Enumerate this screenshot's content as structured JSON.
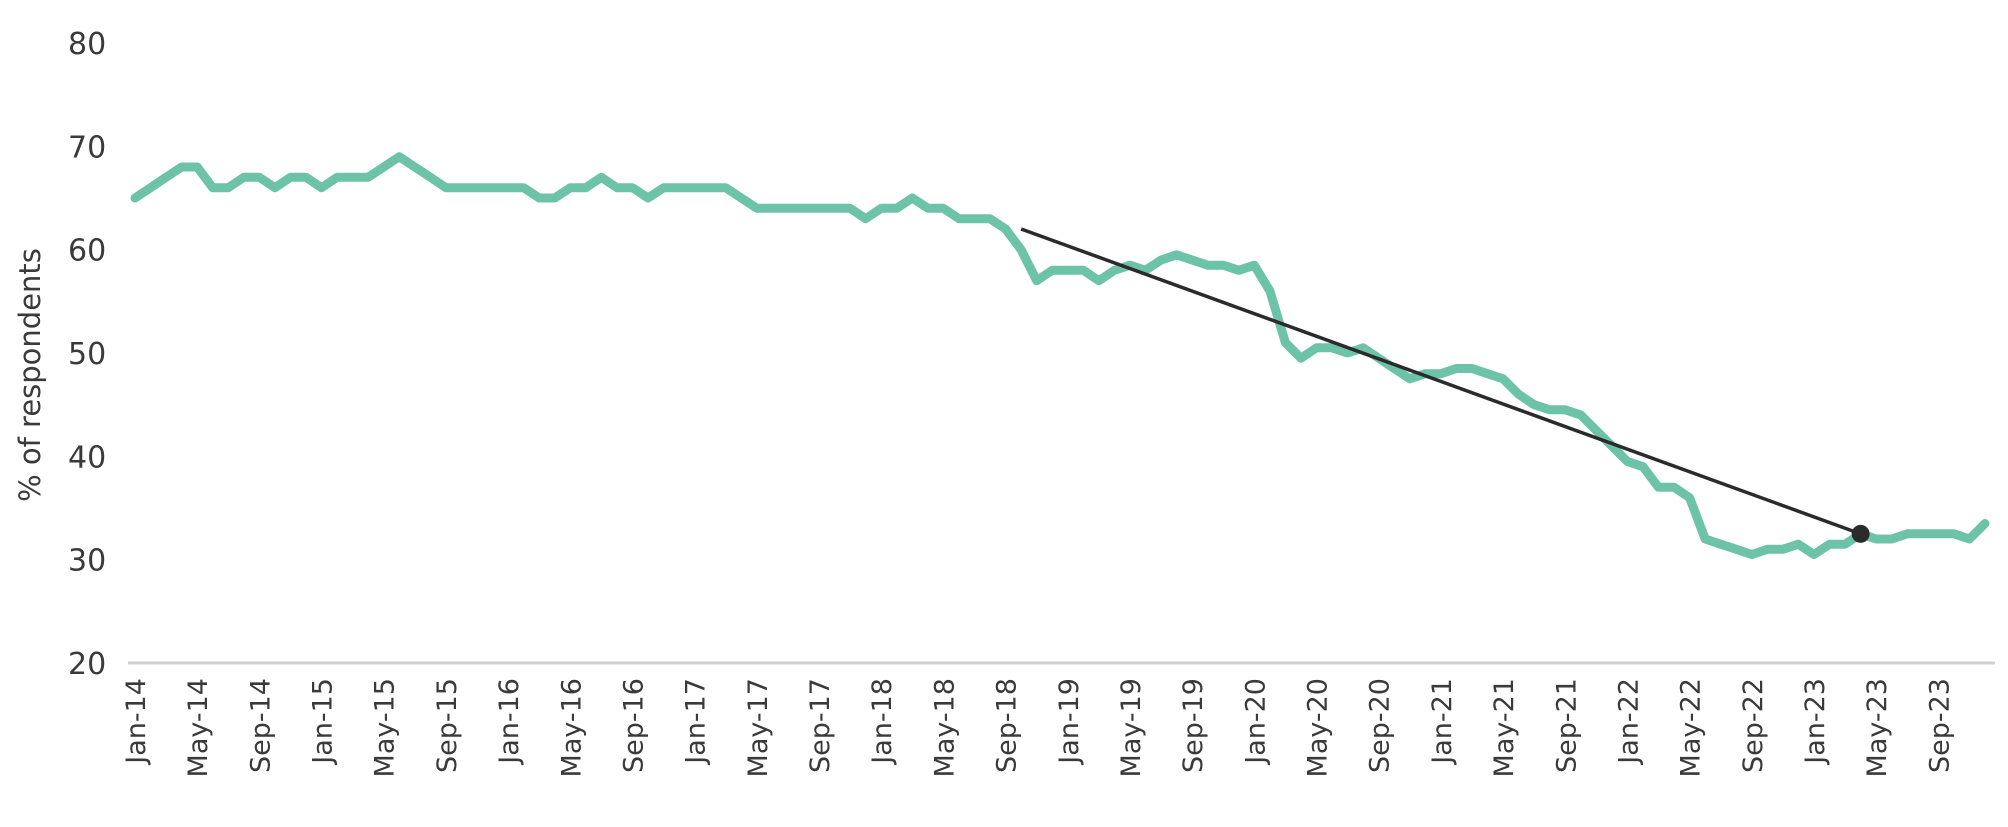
{
  "chart_data": {
    "type": "line",
    "ylabel": "% of respondents",
    "ylim": [
      20,
      80
    ],
    "yticks": [
      20,
      30,
      40,
      50,
      60,
      70,
      80
    ],
    "xlim": [
      "2014-01",
      "2023-12"
    ],
    "xtick_labels": [
      "Jan-14",
      "May-14",
      "Sep-14",
      "Jan-15",
      "May-15",
      "Sep-15",
      "Jan-16",
      "May-16",
      "Sep-16",
      "Jan-17",
      "May-17",
      "Sep-17",
      "Jan-18",
      "May-18",
      "Sep-18",
      "Jan-19",
      "May-19",
      "Sep-19",
      "Jan-20",
      "May-20",
      "Sep-20",
      "Jan-21",
      "May-21",
      "Sep-21",
      "Jan-22",
      "May-22",
      "Sep-22",
      "Jan-23",
      "May-23",
      "Sep-23"
    ],
    "grid": false,
    "series": [
      {
        "color": "#6cc3a8",
        "points": [
          [
            "2014-01",
            65
          ],
          [
            "2014-02",
            66
          ],
          [
            "2014-03",
            67
          ],
          [
            "2014-04",
            68
          ],
          [
            "2014-05",
            68
          ],
          [
            "2014-06",
            66
          ],
          [
            "2014-07",
            66
          ],
          [
            "2014-08",
            67
          ],
          [
            "2014-09",
            67
          ],
          [
            "2014-10",
            66
          ],
          [
            "2014-11",
            67
          ],
          [
            "2014-12",
            67
          ],
          [
            "2015-01",
            66
          ],
          [
            "2015-02",
            67
          ],
          [
            "2015-03",
            67
          ],
          [
            "2015-04",
            67
          ],
          [
            "2015-05",
            68
          ],
          [
            "2015-06",
            69
          ],
          [
            "2015-07",
            68
          ],
          [
            "2015-08",
            67
          ],
          [
            "2015-09",
            66
          ],
          [
            "2015-10",
            66
          ],
          [
            "2015-11",
            66
          ],
          [
            "2015-12",
            66
          ],
          [
            "2016-01",
            66
          ],
          [
            "2016-02",
            66
          ],
          [
            "2016-03",
            65
          ],
          [
            "2016-04",
            65
          ],
          [
            "2016-05",
            66
          ],
          [
            "2016-06",
            66
          ],
          [
            "2016-07",
            67
          ],
          [
            "2016-08",
            66
          ],
          [
            "2016-09",
            66
          ],
          [
            "2016-10",
            65
          ],
          [
            "2016-11",
            66
          ],
          [
            "2016-12",
            66
          ],
          [
            "2017-01",
            66
          ],
          [
            "2017-02",
            66
          ],
          [
            "2017-03",
            66
          ],
          [
            "2017-04",
            65
          ],
          [
            "2017-05",
            64
          ],
          [
            "2017-06",
            64
          ],
          [
            "2017-07",
            64
          ],
          [
            "2017-08",
            64
          ],
          [
            "2017-09",
            64
          ],
          [
            "2017-10",
            64
          ],
          [
            "2017-11",
            64
          ],
          [
            "2017-12",
            63
          ],
          [
            "2018-01",
            64
          ],
          [
            "2018-02",
            64
          ],
          [
            "2018-03",
            65
          ],
          [
            "2018-04",
            64
          ],
          [
            "2018-05",
            64
          ],
          [
            "2018-06",
            63
          ],
          [
            "2018-07",
            63
          ],
          [
            "2018-08",
            63
          ],
          [
            "2018-09",
            62
          ],
          [
            "2018-10",
            60
          ],
          [
            "2018-11",
            57
          ],
          [
            "2018-12",
            58
          ],
          [
            "2019-01",
            58
          ],
          [
            "2019-02",
            58
          ],
          [
            "2019-03",
            57
          ],
          [
            "2019-04",
            58
          ],
          [
            "2019-05",
            58.5
          ],
          [
            "2019-06",
            58
          ],
          [
            "2019-07",
            59
          ],
          [
            "2019-08",
            59.5
          ],
          [
            "2019-09",
            59
          ],
          [
            "2019-10",
            58.5
          ],
          [
            "2019-11",
            58.5
          ],
          [
            "2019-12",
            58
          ],
          [
            "2020-01",
            58.5
          ],
          [
            "2020-02",
            56
          ],
          [
            "2020-03",
            51
          ],
          [
            "2020-04",
            49.5
          ],
          [
            "2020-05",
            50.5
          ],
          [
            "2020-06",
            50.5
          ],
          [
            "2020-07",
            50
          ],
          [
            "2020-08",
            50.5
          ],
          [
            "2020-09",
            49.5
          ],
          [
            "2020-10",
            48.5
          ],
          [
            "2020-11",
            47.5
          ],
          [
            "2020-12",
            48
          ],
          [
            "2021-01",
            48
          ],
          [
            "2021-02",
            48.5
          ],
          [
            "2021-03",
            48.5
          ],
          [
            "2021-04",
            48
          ],
          [
            "2021-05",
            47.5
          ],
          [
            "2021-06",
            46
          ],
          [
            "2021-07",
            45
          ],
          [
            "2021-08",
            44.5
          ],
          [
            "2021-09",
            44.5
          ],
          [
            "2021-10",
            44
          ],
          [
            "2021-11",
            42.5
          ],
          [
            "2021-12",
            41
          ],
          [
            "2022-01",
            39.5
          ],
          [
            "2022-02",
            39
          ],
          [
            "2022-03",
            37
          ],
          [
            "2022-04",
            37
          ],
          [
            "2022-05",
            36
          ],
          [
            "2022-06",
            32
          ],
          [
            "2022-07",
            31.5
          ],
          [
            "2022-08",
            31
          ],
          [
            "2022-09",
            30.5
          ],
          [
            "2022-10",
            31
          ],
          [
            "2022-11",
            31
          ],
          [
            "2022-12",
            31.5
          ],
          [
            "2023-01",
            30.5
          ],
          [
            "2023-02",
            31.5
          ],
          [
            "2023-03",
            31.5
          ],
          [
            "2023-04",
            32.5
          ],
          [
            "2023-05",
            32
          ],
          [
            "2023-06",
            32
          ],
          [
            "2023-07",
            32.5
          ],
          [
            "2023-08",
            32.5
          ],
          [
            "2023-09",
            32.5
          ],
          [
            "2023-10",
            32.5
          ],
          [
            "2023-11",
            32
          ],
          [
            "2023-12",
            33.5
          ]
        ]
      }
    ],
    "trendline": {
      "color": "#2b2b2b",
      "start": [
        "2018-10",
        62
      ],
      "end": [
        "2023-04",
        32.5
      ],
      "end_marker": true
    }
  }
}
